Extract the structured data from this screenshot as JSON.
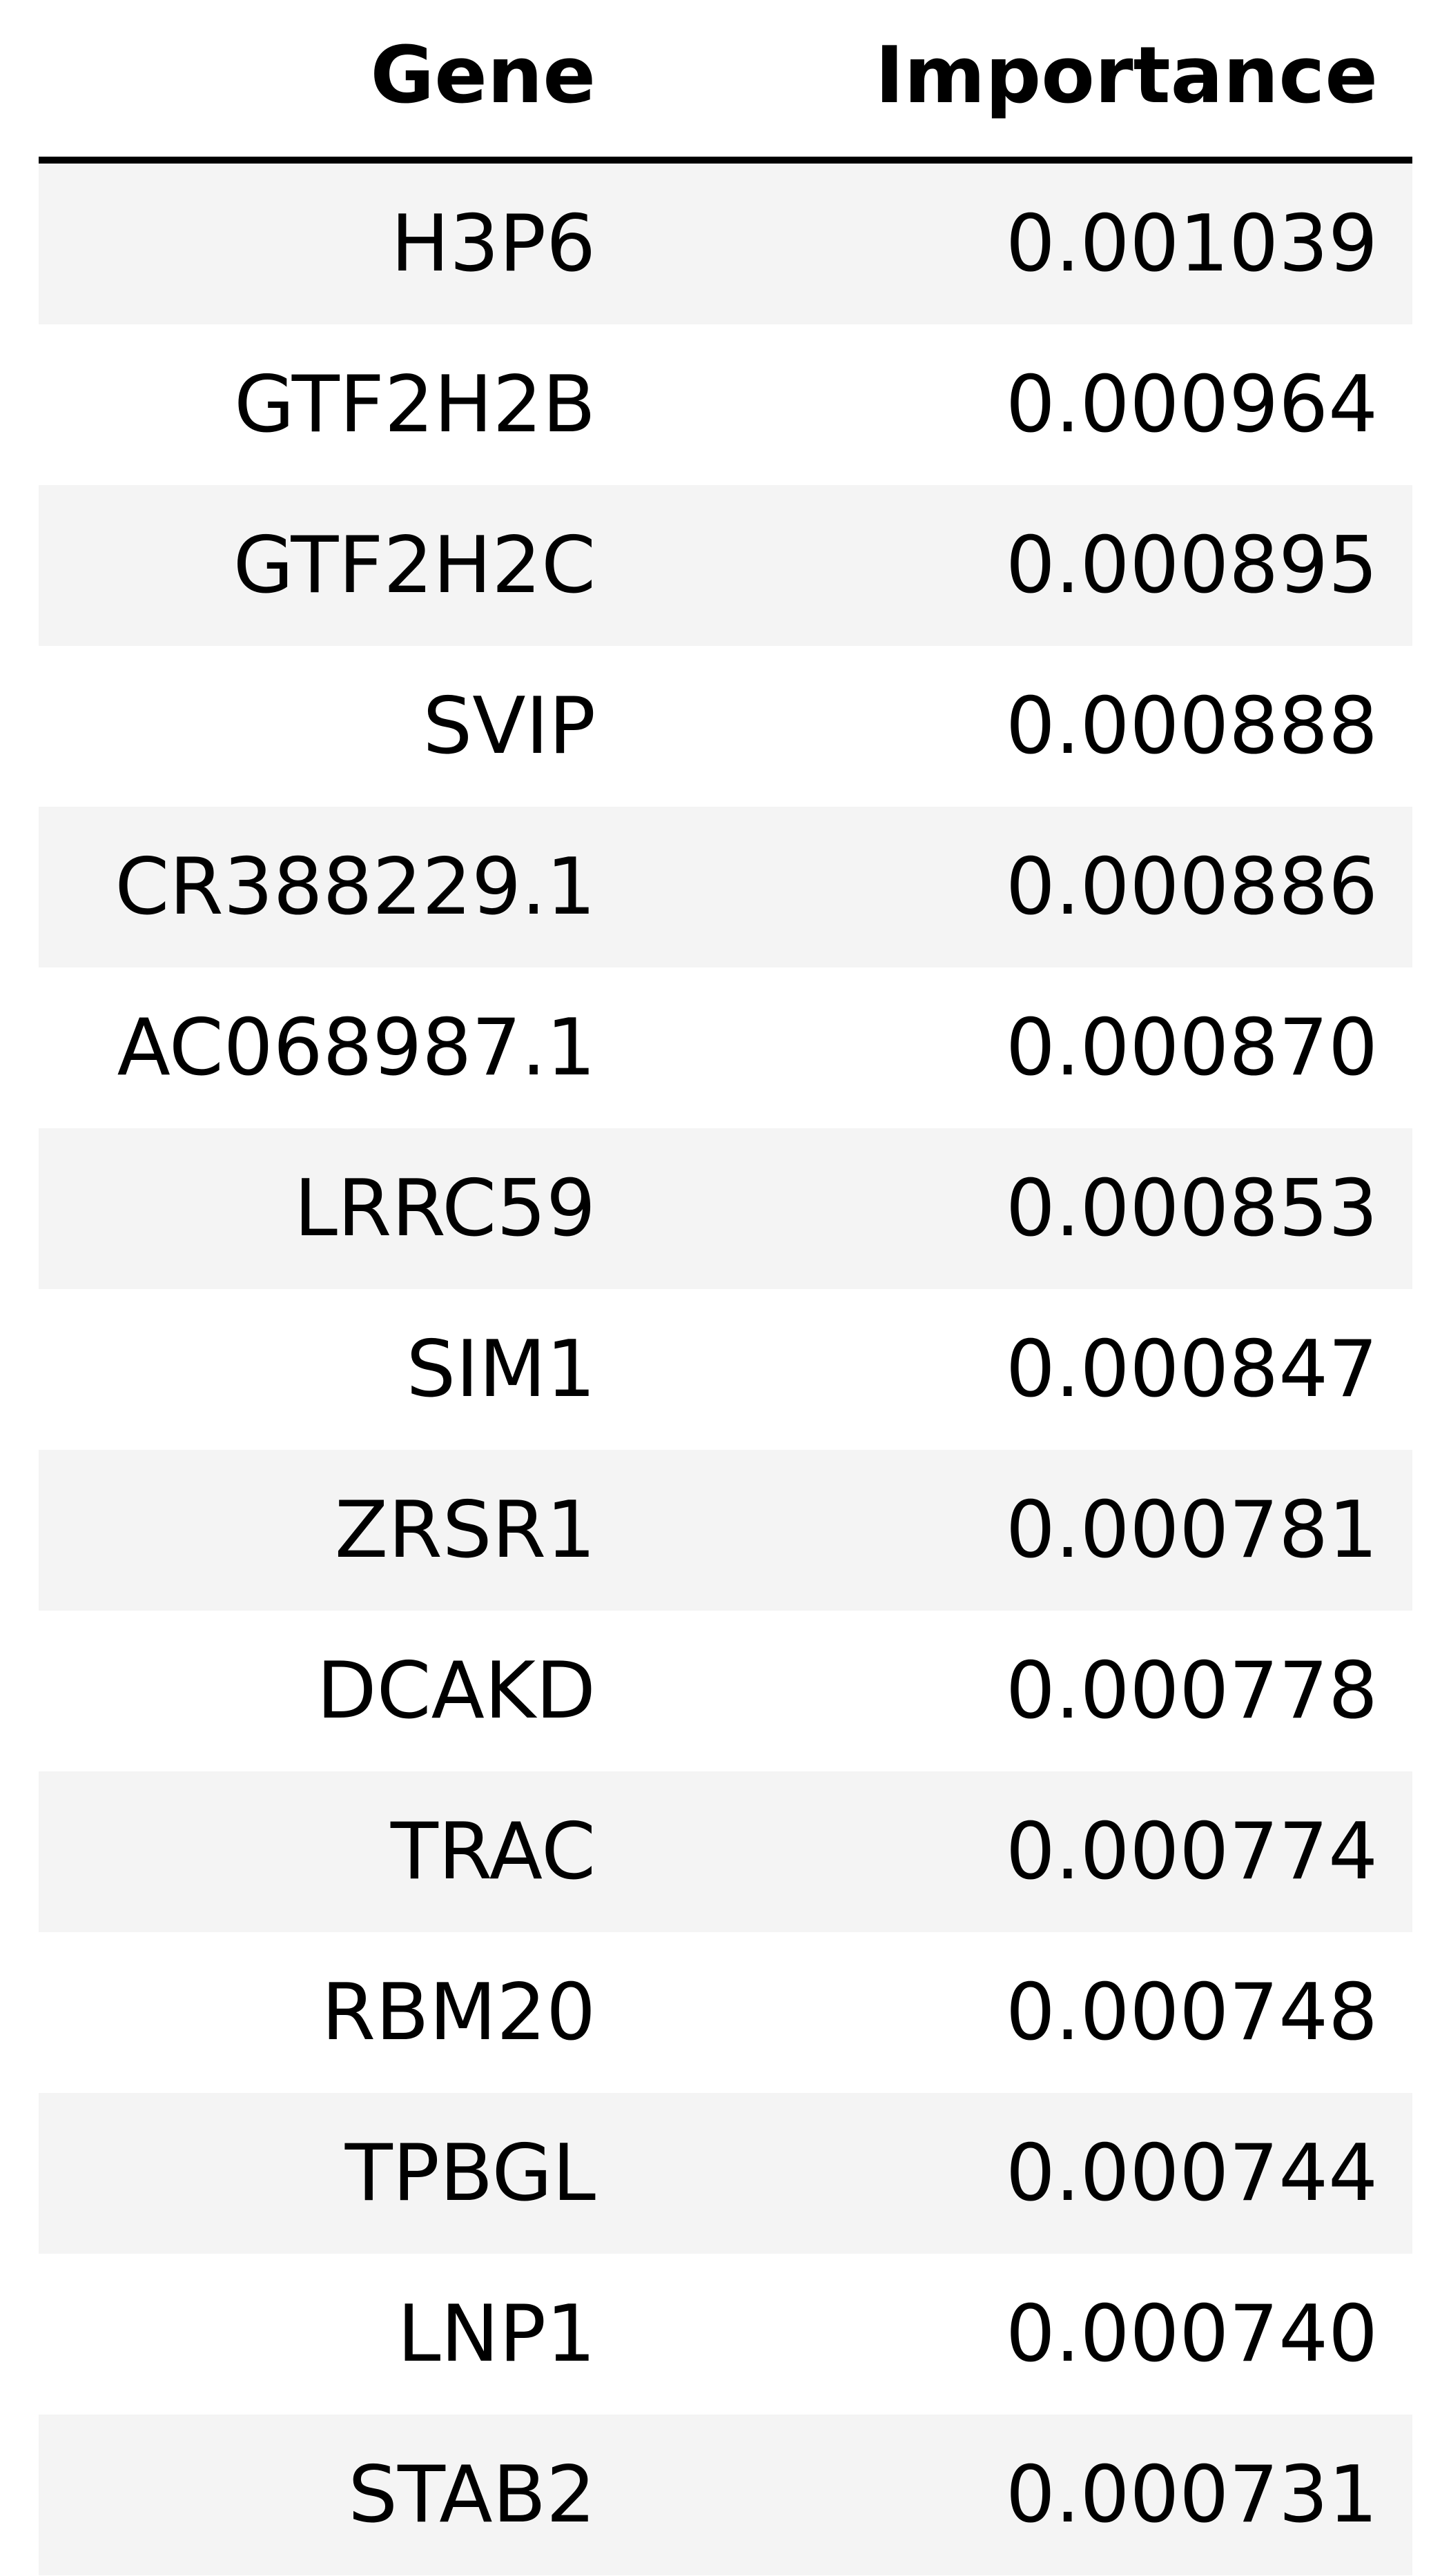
{
  "chart_data": {
    "type": "table",
    "columns": [
      "Gene",
      "Importance"
    ],
    "rows": [
      {
        "gene": "H3P6",
        "importance": "0.001039"
      },
      {
        "gene": "GTF2H2B",
        "importance": "0.000964"
      },
      {
        "gene": "GTF2H2C",
        "importance": "0.000895"
      },
      {
        "gene": "SVIP",
        "importance": "0.000888"
      },
      {
        "gene": "CR388229.1",
        "importance": "0.000886"
      },
      {
        "gene": "AC068987.1",
        "importance": "0.000870"
      },
      {
        "gene": "LRRC59",
        "importance": "0.000853"
      },
      {
        "gene": "SIM1",
        "importance": "0.000847"
      },
      {
        "gene": "ZRSR1",
        "importance": "0.000781"
      },
      {
        "gene": "DCAKD",
        "importance": "0.000778"
      },
      {
        "gene": "TRAC",
        "importance": "0.000774"
      },
      {
        "gene": "RBM20",
        "importance": "0.000748"
      },
      {
        "gene": "TPBGL",
        "importance": "0.000744"
      },
      {
        "gene": "LNP1",
        "importance": "0.000740"
      },
      {
        "gene": "STAB2",
        "importance": "0.000731"
      }
    ],
    "row_stripe_color": "#f4f4f4",
    "header_rule_color": "#000000"
  }
}
